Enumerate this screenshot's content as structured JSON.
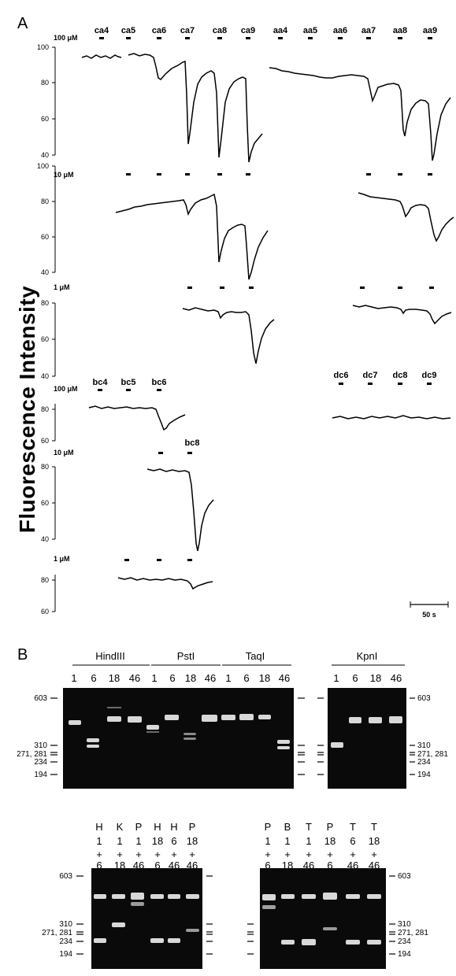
{
  "panel_a": {
    "letter": "A",
    "ylabel": "Fluorescence Intensity",
    "scale_bar": "50 s",
    "rows": [
      {
        "conc": "100 μM",
        "ticks": [
          "100",
          "80",
          "60",
          "40"
        ],
        "labels": [
          "ca4",
          "ca5",
          "ca6",
          "ca7",
          "ca8",
          "ca9",
          "aa4",
          "aa5",
          "aa6",
          "aa7",
          "aa8",
          "aa9"
        ]
      },
      {
        "conc": "10 μM",
        "ticks": [
          "100",
          "80",
          "60",
          "40"
        ]
      },
      {
        "conc": "1 μM",
        "ticks": [
          "80",
          "60",
          "40"
        ]
      },
      {
        "conc": "100 μM",
        "ticks": [
          "80",
          "60"
        ],
        "labels": [
          "bc4",
          "bc5",
          "bc6",
          "dc6",
          "dc7",
          "dc8",
          "dc9"
        ]
      },
      {
        "conc": "10 μM",
        "ticks": [
          "80",
          "60",
          "40"
        ],
        "labels": [
          "bc8"
        ]
      },
      {
        "conc": "1 μM",
        "ticks": [
          "80",
          "60"
        ]
      }
    ]
  },
  "panel_b": {
    "letter": "B",
    "top_left": {
      "enzymes": [
        "HindIII",
        "PstI",
        "TaqI"
      ],
      "lanes": [
        "1",
        "6",
        "18",
        "46",
        "1",
        "6",
        "18",
        "46",
        "1",
        "6",
        "18",
        "46"
      ],
      "markers": [
        "603",
        "310",
        "271, 281",
        "234",
        "194"
      ]
    },
    "top_right": {
      "enzyme": "KpnI",
      "lanes": [
        "1",
        "6",
        "18",
        "46"
      ],
      "markers": [
        "603",
        "310",
        "271, 281",
        "234",
        "194"
      ]
    },
    "bottom_left": {
      "lanes": [
        {
          "e": "H",
          "a": "1",
          "b": "6"
        },
        {
          "e": "K",
          "a": "1",
          "b": "18"
        },
        {
          "e": "P",
          "a": "1",
          "b": "46"
        },
        {
          "e": "H",
          "a": "18",
          "b": "6"
        },
        {
          "e": "H",
          "a": "6",
          "b": "46"
        },
        {
          "e": "P",
          "a": "18",
          "b": "46"
        }
      ],
      "markers": [
        "603",
        "310",
        "271, 281",
        "234",
        "194"
      ]
    },
    "bottom_right": {
      "lanes": [
        {
          "e": "P",
          "a": "1",
          "b": "6"
        },
        {
          "e": "B",
          "a": "1",
          "b": "18"
        },
        {
          "e": "T",
          "a": "1",
          "b": "46"
        },
        {
          "e": "P",
          "a": "18",
          "b": "6"
        },
        {
          "e": "T",
          "a": "6",
          "b": "46"
        },
        {
          "e": "T",
          "a": "18",
          "b": "46"
        }
      ],
      "markers": [
        "603",
        "310",
        "271, 281",
        "234",
        "194"
      ],
      "plus": "+"
    }
  }
}
